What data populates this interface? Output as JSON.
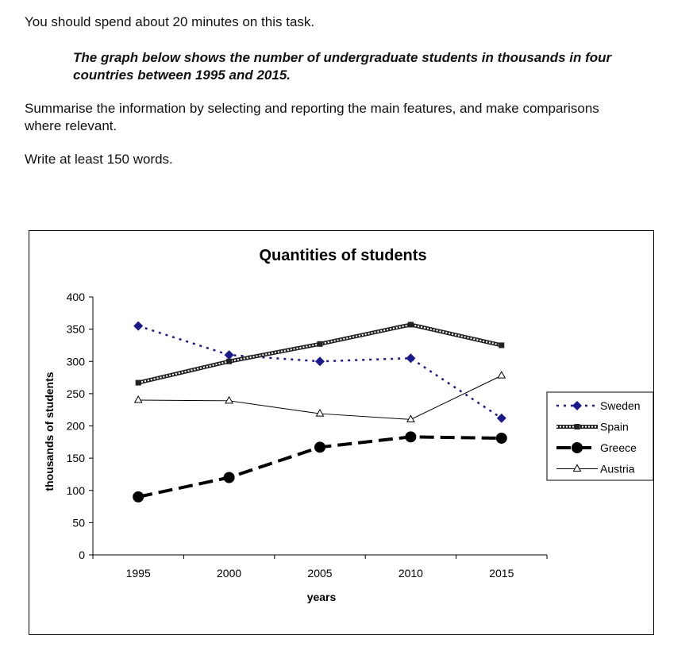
{
  "task": {
    "time_instruction": "You should spend about 20 minutes on this task.",
    "prompt": "The graph below shows the number of undergraduate students in thousands in four countries between 1995 and 2015.",
    "instruction": "Summarise the information by selecting and reporting the main features, and make comparisons where relevant.",
    "word_count": "Write at least 150 words."
  },
  "chart_data": {
    "type": "line",
    "title": "Quantities of students",
    "xlabel": "years",
    "ylabel": "thousands of students",
    "categories": [
      "1995",
      "2000",
      "2005",
      "2010",
      "2015"
    ],
    "ylim": [
      0,
      400
    ],
    "yticks": [
      "0",
      "50",
      "100",
      "150",
      "200",
      "250",
      "300",
      "350",
      "400"
    ],
    "grid": false,
    "legend_position": "right",
    "series": [
      {
        "name": "Sweden",
        "values": [
          355,
          310,
          300,
          305,
          212
        ],
        "color": "#1a1a8c",
        "style": "dotted",
        "marker": "diamond"
      },
      {
        "name": "Spain",
        "values": [
          267,
          300,
          327,
          357,
          325
        ],
        "color": "#222222",
        "style": "double",
        "marker": "square"
      },
      {
        "name": "Greece",
        "values": [
          90,
          120,
          167,
          183,
          181
        ],
        "color": "#000000",
        "style": "dashed",
        "marker": "circle"
      },
      {
        "name": "Austria",
        "values": [
          240,
          239,
          219,
          210,
          278
        ],
        "color": "#000000",
        "style": "thin",
        "marker": "triangle"
      }
    ]
  }
}
